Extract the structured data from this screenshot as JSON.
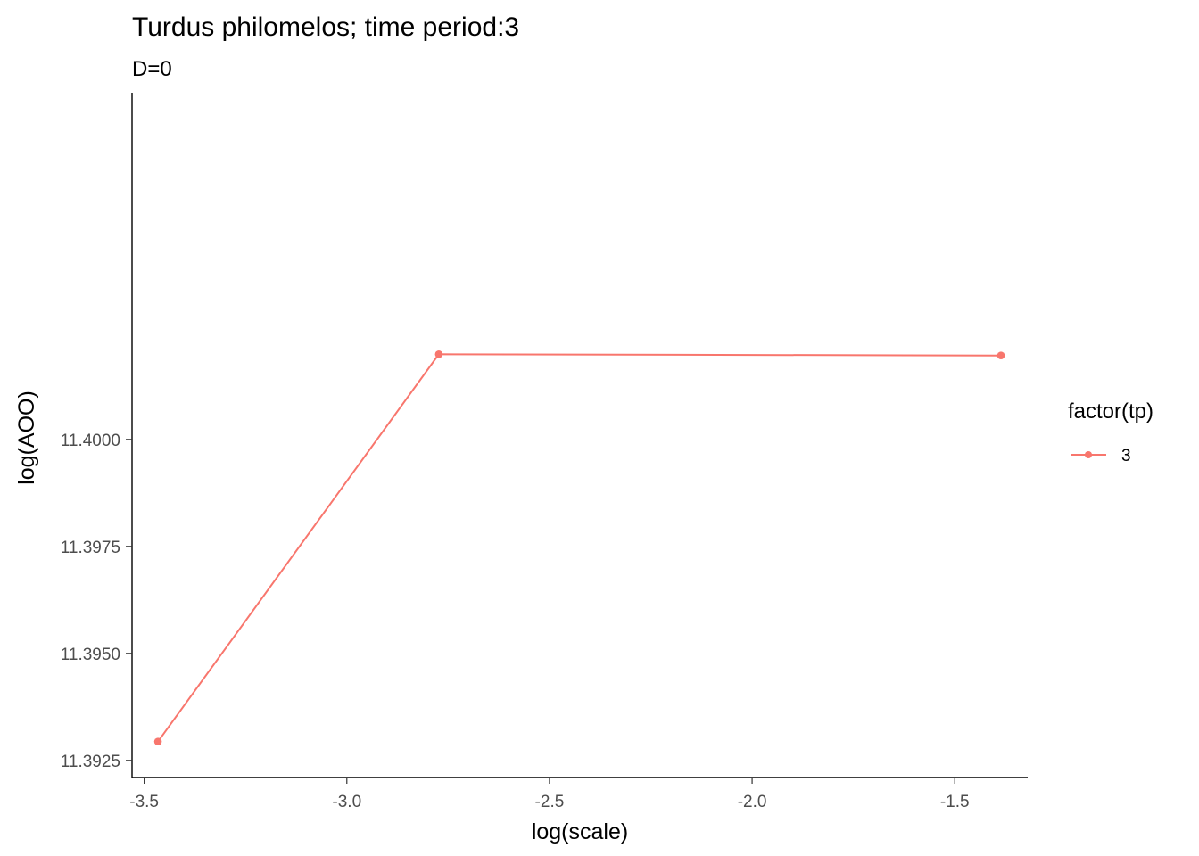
{
  "chart_data": {
    "type": "line",
    "title": "Turdus philomelos; time period:3",
    "subtitle": "D=0",
    "xlabel": "log(scale)",
    "ylabel": "log(AOO)",
    "xlim": [
      -3.53,
      -1.32
    ],
    "ylim": [
      11.3921,
      11.4081
    ],
    "xticks": [
      -3.5,
      -3.0,
      -2.5,
      -2.0,
      -1.5
    ],
    "xtick_labels": [
      "-3.5",
      "-3.0",
      "-2.5",
      "-2.0",
      "-1.5"
    ],
    "yticks": [
      11.3925,
      11.395,
      11.3975,
      11.4
    ],
    "ytick_labels": [
      "11.3925",
      "11.3950",
      "11.3975",
      "11.4000"
    ],
    "grid": false,
    "legend": {
      "title": "factor(tp)",
      "position": "right",
      "entries": [
        "3"
      ]
    },
    "series": [
      {
        "name": "3",
        "color": "#F8766D",
        "x": [
          -3.466,
          -2.773,
          -1.386
        ],
        "y": [
          11.39294,
          11.40199,
          11.40196
        ]
      }
    ]
  }
}
